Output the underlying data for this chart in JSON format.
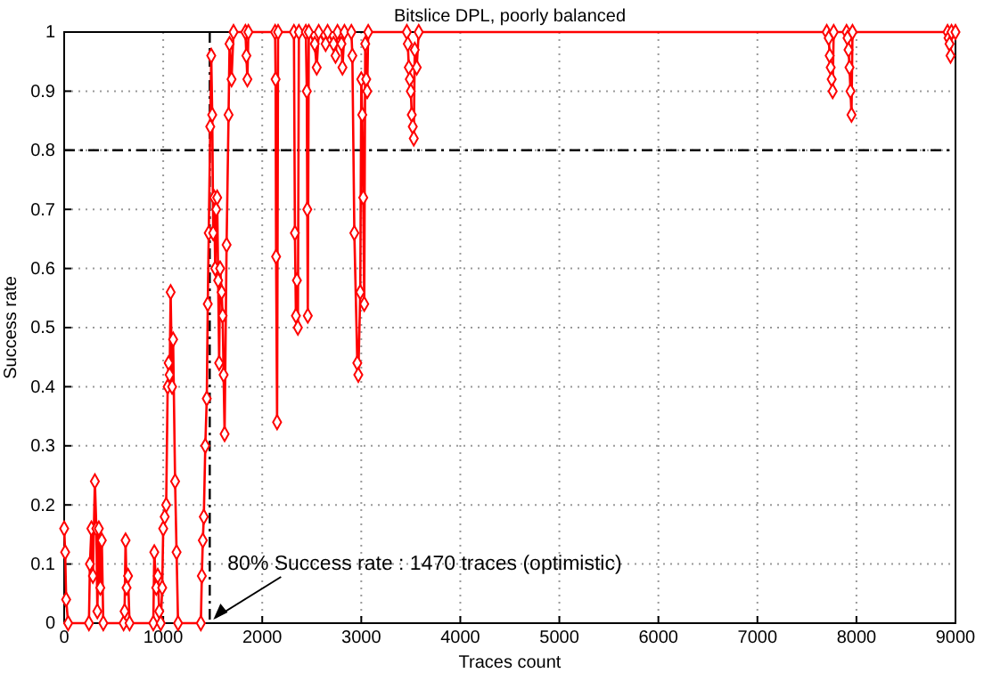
{
  "chart_data": {
    "type": "line",
    "title": "Bitslice DPL, poorly balanced",
    "xlabel": "Traces count",
    "ylabel": "Success rate",
    "xlim": [
      0,
      9000
    ],
    "ylim": [
      0,
      1
    ],
    "xticks": [
      0,
      1000,
      2000,
      3000,
      4000,
      5000,
      6000,
      7000,
      8000,
      9000
    ],
    "yticks": [
      0,
      0.1,
      0.2,
      0.3,
      0.4,
      0.5,
      0.6,
      0.7,
      0.8,
      0.9,
      1
    ],
    "grid": true,
    "marker": "diamond",
    "line_style": "solid",
    "ref_lines": [
      {
        "axis": "y",
        "value": 0.8,
        "color": "#000000",
        "line_style": "dashed"
      },
      {
        "axis": "x",
        "value": 1470,
        "color": "#000000",
        "line_style": "dashed"
      }
    ],
    "annotations": [
      {
        "text": "80% Success rate : 1470 traces (optimistic)",
        "x": 1470,
        "y": 0
      }
    ],
    "series": [
      {
        "color": "#ff0000",
        "x": [
          0,
          10,
          20,
          40,
          250,
          260,
          275,
          290,
          310,
          325,
          335,
          350,
          365,
          380,
          395,
          600,
          610,
          620,
          630,
          645,
          660,
          900,
          910,
          930,
          945,
          960,
          975,
          990,
          1000,
          1015,
          1030,
          1045,
          1055,
          1065,
          1075,
          1090,
          1100,
          1120,
          1135,
          1150,
          1380,
          1390,
          1400,
          1410,
          1425,
          1440,
          1450,
          1460,
          1475,
          1485,
          1495,
          1505,
          1515,
          1525,
          1535,
          1545,
          1555,
          1565,
          1575,
          1590,
          1600,
          1610,
          1620,
          1640,
          1660,
          1670,
          1690,
          1710,
          1830,
          1840,
          1850,
          1860,
          2130,
          2135,
          2140,
          2150,
          2160,
          2320,
          2330,
          2340,
          2350,
          2360,
          2370,
          2440,
          2450,
          2455,
          2460,
          2470,
          2530,
          2550,
          2570,
          2640,
          2660,
          2720,
          2740,
          2760,
          2800,
          2810,
          2830,
          2900,
          2910,
          2930,
          2960,
          2970,
          2990,
          3000,
          3010,
          3020,
          3030,
          3040,
          3050,
          3060,
          3070,
          3460,
          3470,
          3480,
          3490,
          3500,
          3510,
          3520,
          3530,
          3540,
          3560,
          3580,
          7700,
          7720,
          7730,
          7740,
          7750,
          7760,
          7770,
          7900,
          7910,
          7920,
          7930,
          7940,
          7950,
          7960,
          8920,
          8930,
          8940,
          8950,
          8960,
          9000
        ],
        "values": [
          0.16,
          0.12,
          0.04,
          0,
          0,
          0.1,
          0.16,
          0.08,
          0.24,
          0.16,
          0.02,
          0.16,
          0.06,
          0.14,
          0,
          0,
          0.02,
          0.14,
          0.06,
          0.08,
          0,
          0,
          0.12,
          0.06,
          0.08,
          0.02,
          0,
          0.06,
          0.16,
          0.18,
          0.2,
          0.4,
          0.44,
          0.42,
          0.56,
          0.4,
          0.48,
          0.24,
          0.12,
          0,
          0,
          0.08,
          0.14,
          0.18,
          0.3,
          0.38,
          0.54,
          0.66,
          0.84,
          0.96,
          0.86,
          0.66,
          0.72,
          0.6,
          0.7,
          0.72,
          0.58,
          0.44,
          0.6,
          0.56,
          0.52,
          0.42,
          0.32,
          0.64,
          0.86,
          0.98,
          0.92,
          1,
          1,
          0.96,
          0.92,
          1,
          1,
          0.92,
          0.62,
          0.34,
          1,
          1,
          0.66,
          0.52,
          0.58,
          0.5,
          1,
          1,
          0.9,
          0.7,
          0.52,
          1,
          0.98,
          0.94,
          1,
          0.98,
          1,
          0.98,
          0.96,
          1,
          0.98,
          0.94,
          1,
          1,
          0.96,
          0.66,
          0.44,
          0.42,
          0.56,
          0.92,
          0.86,
          0.72,
          0.54,
          0.98,
          0.92,
          0.9,
          1,
          1,
          0.98,
          0.94,
          0.92,
          0.9,
          0.86,
          0.84,
          0.82,
          0.97,
          0.94,
          1,
          1,
          0.99,
          0.96,
          0.94,
          0.92,
          0.9,
          1,
          1,
          0.99,
          0.97,
          0.94,
          0.9,
          0.86,
          1,
          1,
          0.99,
          0.98,
          0.96,
          1,
          1
        ]
      }
    ]
  }
}
